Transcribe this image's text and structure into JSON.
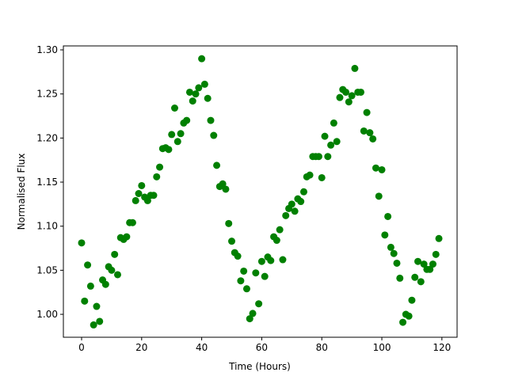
{
  "chart_data": {
    "type": "scatter",
    "xlabel": "Time (Hours)",
    "ylabel": "Normalised Flux",
    "color": "#008000",
    "x": [
      0,
      1,
      2,
      3,
      4,
      5,
      6,
      7,
      8,
      9,
      10,
      11,
      12,
      13,
      14,
      15,
      16,
      17,
      18,
      19,
      20,
      21,
      22,
      23,
      24,
      25,
      26,
      27,
      28,
      29,
      30,
      31,
      32,
      33,
      34,
      35,
      36,
      37,
      38,
      39,
      40,
      41,
      42,
      43,
      44,
      45,
      46,
      47,
      48,
      49,
      50,
      51,
      52,
      53,
      54,
      55,
      56,
      57,
      58,
      59,
      60,
      61,
      62,
      63,
      64,
      65,
      66,
      67,
      68,
      69,
      70,
      71,
      72,
      73,
      74,
      75,
      76,
      77,
      78,
      79,
      80,
      81,
      82,
      83,
      84,
      85,
      86,
      87,
      88,
      89,
      90,
      91,
      92,
      93,
      94,
      95,
      96,
      97,
      98,
      99,
      100,
      101,
      102,
      103,
      104,
      105,
      106,
      107,
      108,
      109,
      110,
      111,
      112,
      113,
      114,
      115,
      116,
      117,
      118,
      119
    ],
    "values": [
      1.081,
      1.015,
      1.056,
      1.032,
      0.988,
      1.009,
      0.992,
      1.039,
      1.034,
      1.054,
      1.05,
      1.068,
      1.045,
      1.087,
      1.085,
      1.088,
      1.104,
      1.104,
      1.129,
      1.137,
      1.146,
      1.133,
      1.129,
      1.135,
      1.135,
      1.156,
      1.167,
      1.188,
      1.189,
      1.187,
      1.204,
      1.234,
      1.196,
      1.205,
      1.217,
      1.22,
      1.252,
      1.242,
      1.25,
      1.257,
      1.29,
      1.261,
      1.245,
      1.22,
      1.203,
      1.169,
      1.145,
      1.148,
      1.142,
      1.103,
      1.083,
      1.07,
      1.066,
      1.038,
      1.049,
      1.029,
      0.995,
      1.001,
      1.047,
      1.012,
      1.06,
      1.043,
      1.065,
      1.061,
      1.088,
      1.084,
      1.096,
      1.062,
      1.112,
      1.12,
      1.125,
      1.117,
      1.131,
      1.128,
      1.139,
      1.156,
      1.158,
      1.179,
      1.179,
      1.179,
      1.155,
      1.202,
      1.179,
      1.192,
      1.217,
      1.196,
      1.246,
      1.255,
      1.252,
      1.241,
      1.248,
      1.279,
      1.252,
      1.252,
      1.208,
      1.229,
      1.206,
      1.199,
      1.166,
      1.134,
      1.164,
      1.09,
      1.111,
      1.076,
      1.069,
      1.058,
      1.041,
      0.991,
      1.0,
      0.998,
      1.016,
      1.042,
      1.06,
      1.037,
      1.057,
      1.051,
      1.051,
      1.057,
      1.068,
      1.086
    ],
    "xlim": [
      -6.07,
      125.06
    ],
    "xticks": [
      0,
      20,
      40,
      60,
      80,
      100,
      120
    ],
    "ylim": [
      0.974,
      1.3045
    ],
    "yticks": [
      {
        "value": 1.0,
        "label": "1.00"
      },
      {
        "value": 1.05,
        "label": "1.05"
      },
      {
        "value": 1.1,
        "label": "1.10"
      },
      {
        "value": 1.15,
        "label": "1.15"
      },
      {
        "value": 1.2,
        "label": "1.20"
      },
      {
        "value": 1.25,
        "label": "1.25"
      },
      {
        "value": 1.3,
        "label": "1.30"
      }
    ]
  }
}
